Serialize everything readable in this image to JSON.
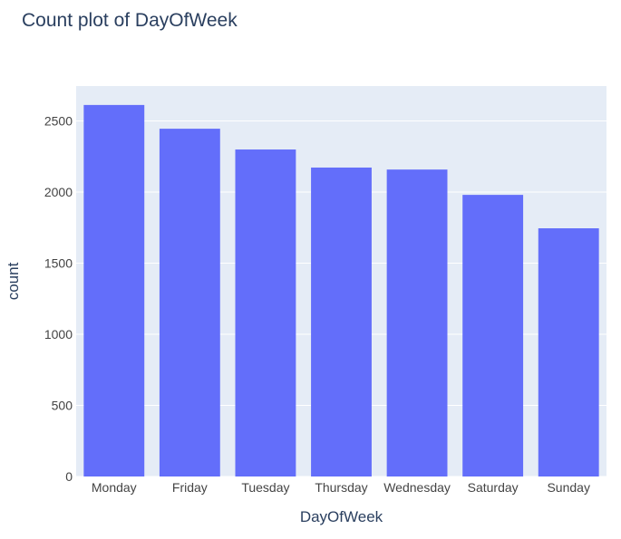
{
  "chart_data": {
    "type": "bar",
    "title": "Count plot of DayOfWeek",
    "xlabel": "DayOfWeek",
    "ylabel": "count",
    "categories": [
      "Monday",
      "Friday",
      "Tuesday",
      "Thursday",
      "Wednesday",
      "Saturday",
      "Sunday"
    ],
    "values": [
      2612,
      2445,
      2299,
      2172,
      2158,
      1980,
      1745
    ],
    "ylim": [
      0,
      2745
    ],
    "yticks": [
      0,
      500,
      1000,
      1500,
      2000,
      2500
    ],
    "ytick_labels": [
      "0",
      "500",
      "1000",
      "1500",
      "2000",
      "2500"
    ],
    "grid": true,
    "legend": "none",
    "colors": {
      "bar": "#636efa",
      "plot_background": "#e5ecf6",
      "gridline": "#ffffff",
      "text": "#2a3f5f",
      "tick_text": "#444444"
    }
  }
}
